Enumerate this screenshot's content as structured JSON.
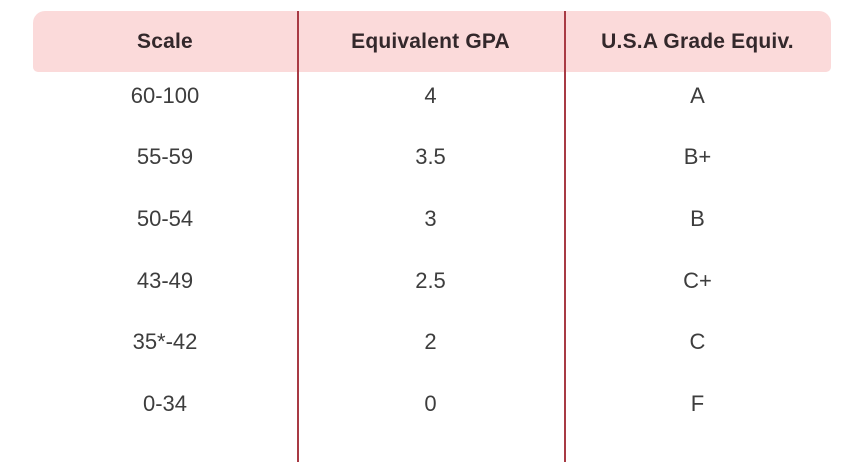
{
  "colors": {
    "header_bg": "#fbdada",
    "divider": "#a83a44",
    "header_text": "#33282b",
    "body_text": "#3d3d3d",
    "background": "#ffffff"
  },
  "chart_data": {
    "type": "table",
    "title": "",
    "columns": [
      "Scale",
      "Equivalent GPA",
      "U.S.A Grade Equiv."
    ],
    "rows": [
      [
        "60-100",
        "4",
        "A"
      ],
      [
        "55-59",
        "3.5",
        "B+"
      ],
      [
        "50-54",
        "3",
        "B"
      ],
      [
        "43-49",
        "2.5",
        "C+"
      ],
      [
        "35*-42",
        "2",
        "C"
      ],
      [
        "0-34",
        "0",
        "F"
      ]
    ],
    "layout": {
      "grid": "off",
      "row_separators": "none",
      "column_dividers": 2
    }
  }
}
